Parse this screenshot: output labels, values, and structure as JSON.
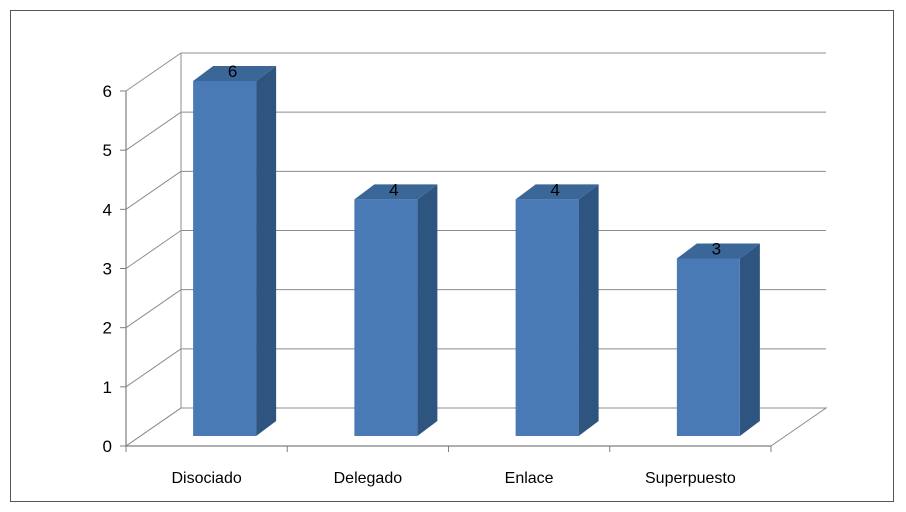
{
  "chart_data": {
    "type": "bar",
    "style": "3d-column",
    "categories": [
      "Disociado",
      "Delegado",
      "Enlace",
      "Superpuesto"
    ],
    "values": [
      6,
      4,
      4,
      3
    ],
    "data_labels": [
      "6",
      "4",
      "4",
      "3"
    ],
    "title": "",
    "xlabel": "",
    "ylabel": "",
    "ylim": [
      0,
      6
    ],
    "yticks": [
      0,
      1,
      2,
      3,
      4,
      5,
      6
    ],
    "ytick_labels": [
      "0",
      "1",
      "2",
      "3",
      "4",
      "5",
      "6"
    ],
    "grid": true,
    "legend": "none",
    "colors": {
      "bar_front": "#4a7ab5",
      "bar_side": "#2e5480",
      "bar_top": "#3b6698",
      "grid": "#8c8c8c",
      "axis": "#7f7f7f"
    }
  }
}
